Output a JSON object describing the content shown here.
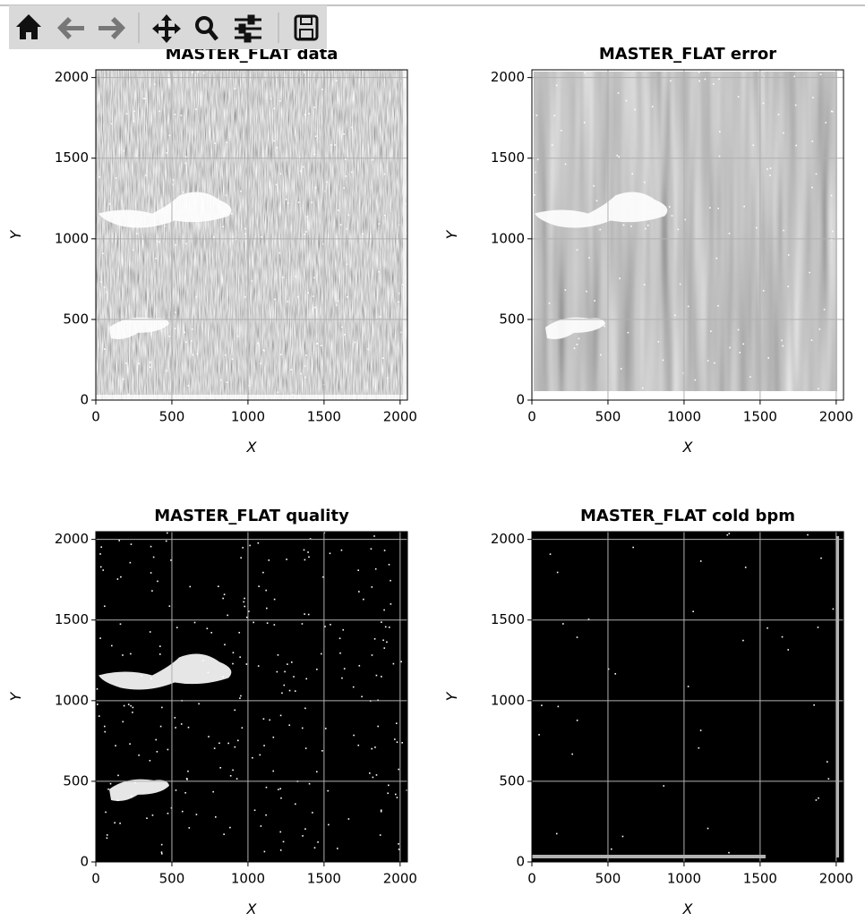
{
  "chart_data": [
    {
      "type": "image",
      "title": "MASTER_FLAT data",
      "xlabel": "X",
      "ylabel": "Y",
      "cmap": "gray",
      "xlim": [
        0,
        2048
      ],
      "ylim": [
        0,
        2048
      ],
      "xticks": [
        0,
        500,
        1000,
        1500,
        2000
      ],
      "yticks": [
        0,
        500,
        1000,
        1500,
        2000
      ],
      "grid": true
    },
    {
      "type": "image",
      "title": "MASTER_FLAT error",
      "xlabel": "X",
      "ylabel": "Y",
      "cmap": "gray",
      "xlim": [
        0,
        2048
      ],
      "ylim": [
        0,
        2048
      ],
      "xticks": [
        0,
        500,
        1000,
        1500,
        2000
      ],
      "yticks": [
        0,
        500,
        1000,
        1500,
        2000
      ],
      "grid": true
    },
    {
      "type": "image",
      "title": "MASTER_FLAT quality",
      "xlabel": "X",
      "ylabel": "Y",
      "cmap": "gray",
      "xlim": [
        0,
        2048
      ],
      "ylim": [
        0,
        2048
      ],
      "xticks": [
        0,
        500,
        1000,
        1500,
        2000
      ],
      "yticks": [
        0,
        500,
        1000,
        1500,
        2000
      ],
      "grid": true
    },
    {
      "type": "image",
      "title": "MASTER_FLAT cold bpm",
      "xlabel": "X",
      "ylabel": "Y",
      "cmap": "gray",
      "xlim": [
        0,
        2048
      ],
      "ylim": [
        0,
        2048
      ],
      "xticks": [
        0,
        500,
        1000,
        1500,
        2000
      ],
      "yticks": [
        0,
        500,
        1000,
        1500,
        2000
      ],
      "grid": true
    }
  ]
}
